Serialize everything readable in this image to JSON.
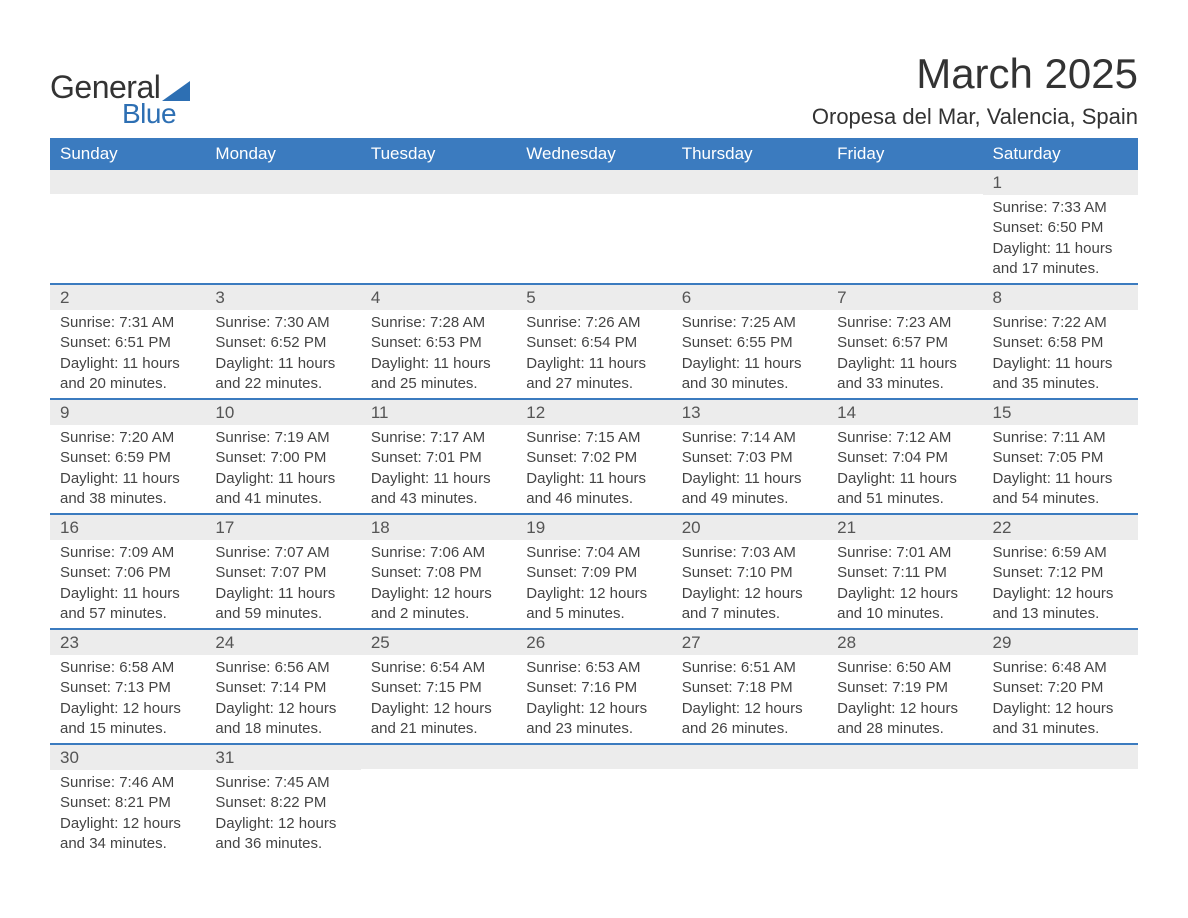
{
  "logo": {
    "text_general": "General",
    "text_blue": "Blue",
    "triangle_color": "#2d6fb3"
  },
  "header": {
    "month_title": "March 2025",
    "location": "Oropesa del Mar, Valencia, Spain"
  },
  "colors": {
    "header_bg": "#3b7bbf",
    "header_text": "#ffffff",
    "daynum_bg": "#ececec",
    "row_divider": "#3b7bbf",
    "body_text": "#444444"
  },
  "weekdays": [
    "Sunday",
    "Monday",
    "Tuesday",
    "Wednesday",
    "Thursday",
    "Friday",
    "Saturday"
  ],
  "weeks": [
    [
      {
        "day": "",
        "sunrise": "",
        "sunset": "",
        "daylight": ""
      },
      {
        "day": "",
        "sunrise": "",
        "sunset": "",
        "daylight": ""
      },
      {
        "day": "",
        "sunrise": "",
        "sunset": "",
        "daylight": ""
      },
      {
        "day": "",
        "sunrise": "",
        "sunset": "",
        "daylight": ""
      },
      {
        "day": "",
        "sunrise": "",
        "sunset": "",
        "daylight": ""
      },
      {
        "day": "",
        "sunrise": "",
        "sunset": "",
        "daylight": ""
      },
      {
        "day": "1",
        "sunrise": "Sunrise: 7:33 AM",
        "sunset": "Sunset: 6:50 PM",
        "daylight": "Daylight: 11 hours and 17 minutes."
      }
    ],
    [
      {
        "day": "2",
        "sunrise": "Sunrise: 7:31 AM",
        "sunset": "Sunset: 6:51 PM",
        "daylight": "Daylight: 11 hours and 20 minutes."
      },
      {
        "day": "3",
        "sunrise": "Sunrise: 7:30 AM",
        "sunset": "Sunset: 6:52 PM",
        "daylight": "Daylight: 11 hours and 22 minutes."
      },
      {
        "day": "4",
        "sunrise": "Sunrise: 7:28 AM",
        "sunset": "Sunset: 6:53 PM",
        "daylight": "Daylight: 11 hours and 25 minutes."
      },
      {
        "day": "5",
        "sunrise": "Sunrise: 7:26 AM",
        "sunset": "Sunset: 6:54 PM",
        "daylight": "Daylight: 11 hours and 27 minutes."
      },
      {
        "day": "6",
        "sunrise": "Sunrise: 7:25 AM",
        "sunset": "Sunset: 6:55 PM",
        "daylight": "Daylight: 11 hours and 30 minutes."
      },
      {
        "day": "7",
        "sunrise": "Sunrise: 7:23 AM",
        "sunset": "Sunset: 6:57 PM",
        "daylight": "Daylight: 11 hours and 33 minutes."
      },
      {
        "day": "8",
        "sunrise": "Sunrise: 7:22 AM",
        "sunset": "Sunset: 6:58 PM",
        "daylight": "Daylight: 11 hours and 35 minutes."
      }
    ],
    [
      {
        "day": "9",
        "sunrise": "Sunrise: 7:20 AM",
        "sunset": "Sunset: 6:59 PM",
        "daylight": "Daylight: 11 hours and 38 minutes."
      },
      {
        "day": "10",
        "sunrise": "Sunrise: 7:19 AM",
        "sunset": "Sunset: 7:00 PM",
        "daylight": "Daylight: 11 hours and 41 minutes."
      },
      {
        "day": "11",
        "sunrise": "Sunrise: 7:17 AM",
        "sunset": "Sunset: 7:01 PM",
        "daylight": "Daylight: 11 hours and 43 minutes."
      },
      {
        "day": "12",
        "sunrise": "Sunrise: 7:15 AM",
        "sunset": "Sunset: 7:02 PM",
        "daylight": "Daylight: 11 hours and 46 minutes."
      },
      {
        "day": "13",
        "sunrise": "Sunrise: 7:14 AM",
        "sunset": "Sunset: 7:03 PM",
        "daylight": "Daylight: 11 hours and 49 minutes."
      },
      {
        "day": "14",
        "sunrise": "Sunrise: 7:12 AM",
        "sunset": "Sunset: 7:04 PM",
        "daylight": "Daylight: 11 hours and 51 minutes."
      },
      {
        "day": "15",
        "sunrise": "Sunrise: 7:11 AM",
        "sunset": "Sunset: 7:05 PM",
        "daylight": "Daylight: 11 hours and 54 minutes."
      }
    ],
    [
      {
        "day": "16",
        "sunrise": "Sunrise: 7:09 AM",
        "sunset": "Sunset: 7:06 PM",
        "daylight": "Daylight: 11 hours and 57 minutes."
      },
      {
        "day": "17",
        "sunrise": "Sunrise: 7:07 AM",
        "sunset": "Sunset: 7:07 PM",
        "daylight": "Daylight: 11 hours and 59 minutes."
      },
      {
        "day": "18",
        "sunrise": "Sunrise: 7:06 AM",
        "sunset": "Sunset: 7:08 PM",
        "daylight": "Daylight: 12 hours and 2 minutes."
      },
      {
        "day": "19",
        "sunrise": "Sunrise: 7:04 AM",
        "sunset": "Sunset: 7:09 PM",
        "daylight": "Daylight: 12 hours and 5 minutes."
      },
      {
        "day": "20",
        "sunrise": "Sunrise: 7:03 AM",
        "sunset": "Sunset: 7:10 PM",
        "daylight": "Daylight: 12 hours and 7 minutes."
      },
      {
        "day": "21",
        "sunrise": "Sunrise: 7:01 AM",
        "sunset": "Sunset: 7:11 PM",
        "daylight": "Daylight: 12 hours and 10 minutes."
      },
      {
        "day": "22",
        "sunrise": "Sunrise: 6:59 AM",
        "sunset": "Sunset: 7:12 PM",
        "daylight": "Daylight: 12 hours and 13 minutes."
      }
    ],
    [
      {
        "day": "23",
        "sunrise": "Sunrise: 6:58 AM",
        "sunset": "Sunset: 7:13 PM",
        "daylight": "Daylight: 12 hours and 15 minutes."
      },
      {
        "day": "24",
        "sunrise": "Sunrise: 6:56 AM",
        "sunset": "Sunset: 7:14 PM",
        "daylight": "Daylight: 12 hours and 18 minutes."
      },
      {
        "day": "25",
        "sunrise": "Sunrise: 6:54 AM",
        "sunset": "Sunset: 7:15 PM",
        "daylight": "Daylight: 12 hours and 21 minutes."
      },
      {
        "day": "26",
        "sunrise": "Sunrise: 6:53 AM",
        "sunset": "Sunset: 7:16 PM",
        "daylight": "Daylight: 12 hours and 23 minutes."
      },
      {
        "day": "27",
        "sunrise": "Sunrise: 6:51 AM",
        "sunset": "Sunset: 7:18 PM",
        "daylight": "Daylight: 12 hours and 26 minutes."
      },
      {
        "day": "28",
        "sunrise": "Sunrise: 6:50 AM",
        "sunset": "Sunset: 7:19 PM",
        "daylight": "Daylight: 12 hours and 28 minutes."
      },
      {
        "day": "29",
        "sunrise": "Sunrise: 6:48 AM",
        "sunset": "Sunset: 7:20 PM",
        "daylight": "Daylight: 12 hours and 31 minutes."
      }
    ],
    [
      {
        "day": "30",
        "sunrise": "Sunrise: 7:46 AM",
        "sunset": "Sunset: 8:21 PM",
        "daylight": "Daylight: 12 hours and 34 minutes."
      },
      {
        "day": "31",
        "sunrise": "Sunrise: 7:45 AM",
        "sunset": "Sunset: 8:22 PM",
        "daylight": "Daylight: 12 hours and 36 minutes."
      },
      {
        "day": "",
        "sunrise": "",
        "sunset": "",
        "daylight": ""
      },
      {
        "day": "",
        "sunrise": "",
        "sunset": "",
        "daylight": ""
      },
      {
        "day": "",
        "sunrise": "",
        "sunset": "",
        "daylight": ""
      },
      {
        "day": "",
        "sunrise": "",
        "sunset": "",
        "daylight": ""
      },
      {
        "day": "",
        "sunrise": "",
        "sunset": "",
        "daylight": ""
      }
    ]
  ]
}
